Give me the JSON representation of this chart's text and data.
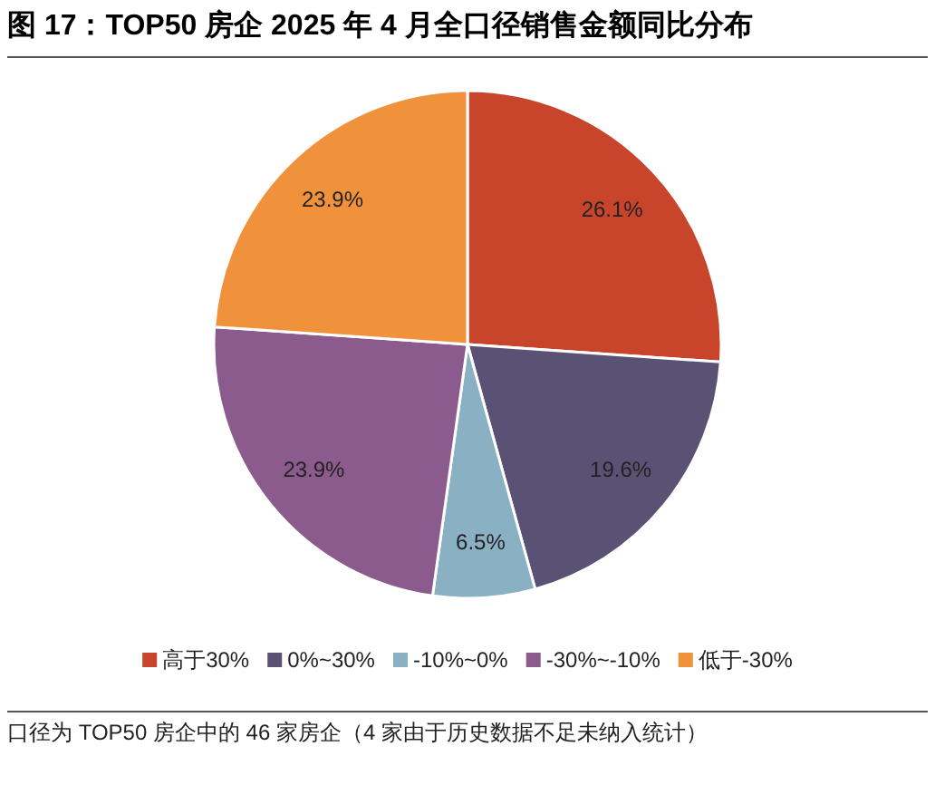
{
  "chart_data": {
    "type": "pie",
    "title": "图 17：TOP50 房企 2025 年 4 月全口径销售金额同比分布",
    "categories": [
      "高于30%",
      "0%~30%",
      "-10%~0%",
      "-30%~-10%",
      "低于-30%"
    ],
    "values": [
      26.1,
      19.6,
      6.5,
      23.9,
      23.9
    ],
    "value_labels": [
      "26.1%",
      "19.6%",
      "6.5%",
      "23.9%",
      "23.9%"
    ],
    "colors": [
      "#c8442a",
      "#5a5275",
      "#8ab0c4",
      "#8a5b8c",
      "#f0923c"
    ],
    "legend": "bottom",
    "annotations": [
      "口径为 TOP50 房企中的 46 家房企（4 家由于历史数据不足未纳入统计）"
    ]
  }
}
